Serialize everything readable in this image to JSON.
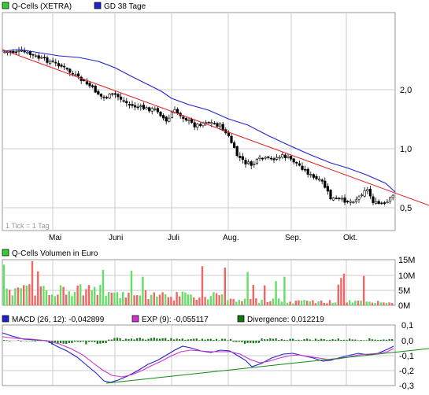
{
  "colors": {
    "price_legend": "#33cc33",
    "ma_line": "#2222cc",
    "trend_line": "#dd2222",
    "support_line": "#118811",
    "candle": "#000000",
    "volume_up": "#66dd66",
    "volume_down": "#ee6666",
    "macd_line": "#2222cc",
    "exp_line": "#cc33cc",
    "divergence_bar": "#117711",
    "grid": "#cccccc"
  },
  "price_panel": {
    "legend": [
      {
        "label": "Q-Cells (XETRA)",
        "color": "#33cc33"
      },
      {
        "label": "GD 38 Tage",
        "color": "#2222cc"
      }
    ],
    "tick_note": "1 Tick = 1 Tag",
    "y_ticks": [
      "2,0",
      "1,0",
      "0,5"
    ],
    "x_ticks": [
      "Mai",
      "Juni",
      "Juli",
      "Aug.",
      "Sep.",
      "Okt."
    ]
  },
  "volume_panel": {
    "legend": [
      {
        "label": "Q-Cells Volumen in Euro",
        "color": "#33cc33"
      }
    ],
    "y_ticks": [
      "15M",
      "10M",
      "5M",
      "0M"
    ]
  },
  "macd_panel": {
    "legend": [
      {
        "label": "MACD (26, 12): -0,042899",
        "color": "#2222cc"
      },
      {
        "label": "EXP (9): -0,055117",
        "color": "#cc33cc"
      },
      {
        "label": "Divergence: 0,012219",
        "color": "#117711"
      }
    ],
    "y_ticks": [
      "0,1",
      "0,0",
      "-0,1",
      "-0,2",
      "-0,3"
    ]
  },
  "chart_data": [
    {
      "type": "line",
      "title": "Q-Cells (XETRA)",
      "y_scale": "log",
      "ylim": [
        0.4,
        3.5
      ],
      "x": [
        "Mai",
        "Juni",
        "Juli",
        "Aug.",
        "Sep.",
        "Okt."
      ],
      "series": [
        {
          "name": "Q-Cells (XETRA)",
          "values": [
            2.6,
            1.75,
            1.4,
            0.85,
            0.9,
            0.52
          ]
        },
        {
          "name": "GD 38 Tage",
          "values": [
            2.6,
            2.2,
            1.65,
            1.2,
            0.9,
            0.6
          ]
        }
      ]
    },
    {
      "type": "bar",
      "title": "Q-Cells Volumen in Euro",
      "ylim": [
        0,
        15
      ],
      "categories": [
        "Mai",
        "Juni",
        "Juli",
        "Aug.",
        "Sep.",
        "Okt."
      ],
      "values": [
        4,
        6,
        3,
        4,
        2,
        2
      ]
    },
    {
      "type": "line",
      "title": "MACD",
      "ylim": [
        -0.3,
        0.1
      ],
      "x": [
        "Mai",
        "Juni",
        "Juli",
        "Aug.",
        "Sep.",
        "Okt."
      ],
      "series": [
        {
          "name": "MACD (26, 12)",
          "values": [
            -0.01,
            -0.25,
            -0.12,
            -0.09,
            -0.07,
            -0.043
          ]
        },
        {
          "name": "EXP (9)",
          "values": [
            -0.02,
            -0.2,
            -0.14,
            -0.1,
            -0.08,
            -0.055
          ]
        }
      ]
    }
  ]
}
